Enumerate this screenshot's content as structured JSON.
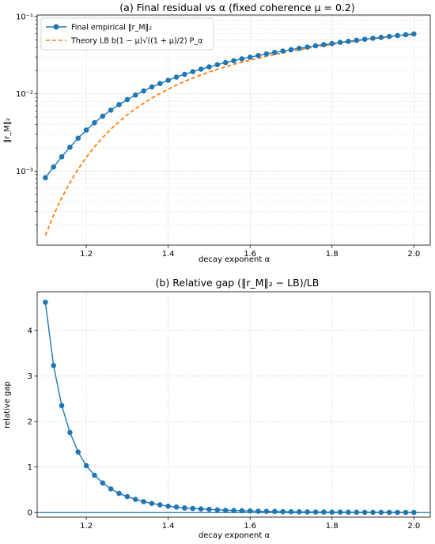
{
  "colors": {
    "empirical": "#1f77b4",
    "theory": "#ff7f0e",
    "zero_line": "#1f77b4"
  },
  "chart_data": [
    {
      "type": "line",
      "title": "(a) Final residual vs α (fixed coherence μ = 0.2)",
      "xlabel": "decay exponent α",
      "ylabel": "‖r_M‖₂",
      "yscale": "log",
      "xlim": [
        1.08,
        2.04
      ],
      "ylim": [
        0.00011,
        0.105
      ],
      "grid": true,
      "legend": "top-left",
      "xticks": [
        1.2,
        1.4,
        1.6,
        1.8,
        2.0
      ],
      "xtick_labels": [
        "1.2",
        "1.4",
        "1.6",
        "1.8",
        "2.0"
      ],
      "yticks": [
        0.001,
        0.01,
        0.1
      ],
      "ytick_labels": [
        "10⁻³",
        "10⁻²",
        "10⁻¹"
      ],
      "series": [
        {
          "name": "Final empirical ‖r_M‖₂",
          "style": "line-marker",
          "x": [
            1.1,
            1.12,
            1.14,
            1.16,
            1.18,
            1.2,
            1.22,
            1.24,
            1.26,
            1.28,
            1.3,
            1.32,
            1.34,
            1.36,
            1.38,
            1.4,
            1.42,
            1.44,
            1.46,
            1.48,
            1.5,
            1.52,
            1.54,
            1.56,
            1.58,
            1.6,
            1.62,
            1.64,
            1.66,
            1.68,
            1.7,
            1.72,
            1.74,
            1.76,
            1.78,
            1.8,
            1.82,
            1.84,
            1.86,
            1.88,
            1.9,
            1.92,
            1.94,
            1.96,
            1.98,
            2.0
          ],
          "y": [
            0.00082,
            0.00113,
            0.00153,
            0.00204,
            0.00267,
            0.0034,
            0.00423,
            0.00515,
            0.00616,
            0.00726,
            0.00843,
            0.00966,
            0.0109,
            0.0123,
            0.0136,
            0.015,
            0.0165,
            0.0179,
            0.0194,
            0.0209,
            0.0224,
            0.0239,
            0.0254,
            0.0269,
            0.0284,
            0.0299,
            0.0314,
            0.0329,
            0.0344,
            0.0359,
            0.0374,
            0.0389,
            0.0404,
            0.0419,
            0.0434,
            0.0449,
            0.0464,
            0.0479,
            0.0494,
            0.0509,
            0.0524,
            0.0539,
            0.0554,
            0.0569,
            0.0584,
            0.0598
          ]
        },
        {
          "name": "Theory LB b(1 − μ)√((1 + μ)/2) P_α",
          "style": "dashed",
          "x": [
            1.1,
            1.12,
            1.14,
            1.16,
            1.18,
            1.2,
            1.22,
            1.24,
            1.26,
            1.28,
            1.3,
            1.32,
            1.34,
            1.36,
            1.38,
            1.4,
            1.42,
            1.44,
            1.46,
            1.48,
            1.5,
            1.52,
            1.54,
            1.56,
            1.58,
            1.6,
            1.62,
            1.64,
            1.66,
            1.68,
            1.7,
            1.72,
            1.74,
            1.76,
            1.78,
            1.8,
            1.82,
            1.84,
            1.86,
            1.88,
            1.9,
            1.92,
            1.94,
            1.96,
            1.98,
            2.0
          ],
          "y": [
            0.000147,
            0.000268,
            0.00045,
            0.000708,
            0.00106,
            0.00151,
            0.00206,
            0.00272,
            0.00349,
            0.00436,
            0.00534,
            0.00641,
            0.00758,
            0.00884,
            0.0101,
            0.0115,
            0.013,
            0.0145,
            0.016,
            0.0176,
            0.0192,
            0.0208,
            0.0224,
            0.0241,
            0.0257,
            0.0274,
            0.029,
            0.0307,
            0.0323,
            0.034,
            0.0356,
            0.0372,
            0.0389,
            0.0405,
            0.0421,
            0.0437,
            0.0453,
            0.0469,
            0.0485,
            0.0501,
            0.0516,
            0.0532,
            0.0547,
            0.0563,
            0.0578,
            0.0594
          ]
        }
      ]
    },
    {
      "type": "line",
      "title": "(b) Relative gap (‖r_M‖₂ − LB)/LB",
      "xlabel": "decay exponent α",
      "ylabel": "relative gap",
      "xlim": [
        1.08,
        2.04
      ],
      "ylim": [
        -0.1,
        4.85
      ],
      "grid": true,
      "xticks": [
        1.2,
        1.4,
        1.6,
        1.8,
        2.0
      ],
      "xtick_labels": [
        "1.2",
        "1.4",
        "1.6",
        "1.8",
        "2.0"
      ],
      "yticks": [
        0,
        1,
        2,
        3,
        4
      ],
      "ytick_labels": [
        "0",
        "1",
        "2",
        "3",
        "4"
      ],
      "hline": 0,
      "series": [
        {
          "style": "line-marker",
          "x": [
            1.1,
            1.12,
            1.14,
            1.16,
            1.18,
            1.2,
            1.22,
            1.24,
            1.26,
            1.28,
            1.3,
            1.32,
            1.34,
            1.36,
            1.38,
            1.4,
            1.42,
            1.44,
            1.46,
            1.48,
            1.5,
            1.52,
            1.54,
            1.56,
            1.58,
            1.6,
            1.62,
            1.64,
            1.66,
            1.68,
            1.7,
            1.72,
            1.74,
            1.76,
            1.78,
            1.8,
            1.82,
            1.84,
            1.86,
            1.88,
            1.9,
            1.92,
            1.94,
            1.96,
            1.98,
            2.0
          ],
          "y": [
            4.62,
            3.23,
            2.35,
            1.76,
            1.33,
            1.03,
            0.82,
            0.65,
            0.52,
            0.42,
            0.35,
            0.29,
            0.24,
            0.2,
            0.17,
            0.14,
            0.12,
            0.1,
            0.09,
            0.08,
            0.07,
            0.06,
            0.05,
            0.045,
            0.04,
            0.035,
            0.03,
            0.027,
            0.024,
            0.021,
            0.018,
            0.016,
            0.014,
            0.012,
            0.011,
            0.01,
            0.009,
            0.008,
            0.007,
            0.006,
            0.005,
            0.005,
            0.004,
            0.004,
            0.003,
            0.003
          ]
        }
      ]
    }
  ]
}
